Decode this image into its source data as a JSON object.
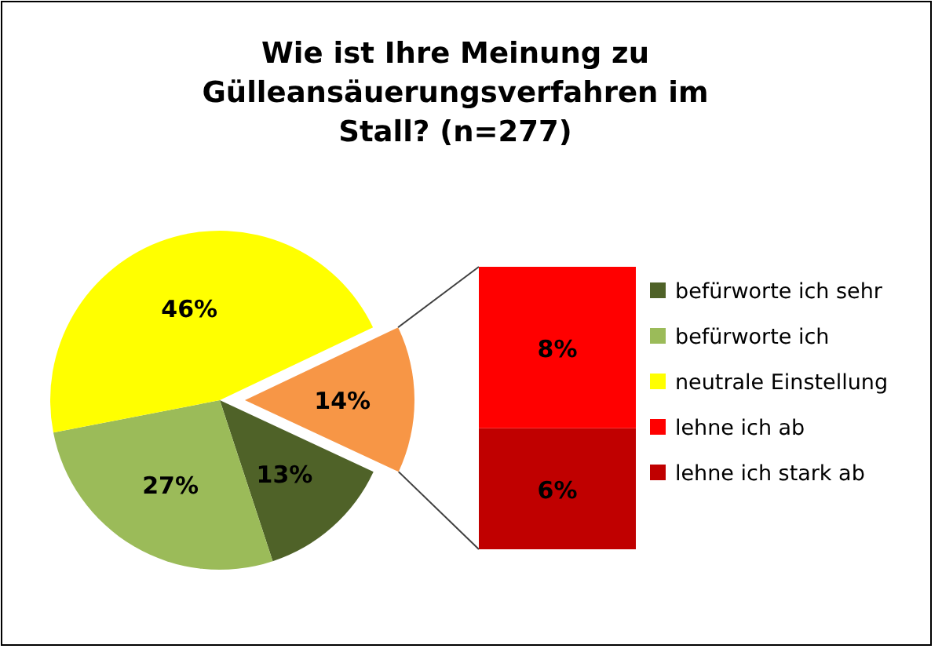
{
  "chart_data": [
    {
      "type": "pie",
      "title": "Wie ist Ihre Meinung zu\nGülleansäuerungsverfahren im\nStall? (n=277)",
      "categories": [
        "befürworte ich sehr",
        "befürworte ich",
        "neutrale Einstellung",
        null
      ],
      "values": [
        13,
        27,
        46,
        14
      ],
      "value_labels": [
        "13%",
        "27%",
        "46%",
        "14%"
      ],
      "colors": [
        "#4f6228",
        "#9bbb59",
        "#ffff00",
        "#f79646"
      ],
      "legend": "right"
    },
    {
      "type": "bar",
      "stacked": true,
      "categories": [
        null
      ],
      "series": [
        {
          "name": "lehne ich stark ab",
          "color": "#c00000",
          "values": [
            6
          ],
          "value_labels": [
            "6%"
          ]
        },
        {
          "name": "lehne ich ab",
          "color": "#ff0000",
          "values": [
            8
          ],
          "value_labels": [
            "8%"
          ]
        }
      ],
      "legend": "right"
    }
  ]
}
